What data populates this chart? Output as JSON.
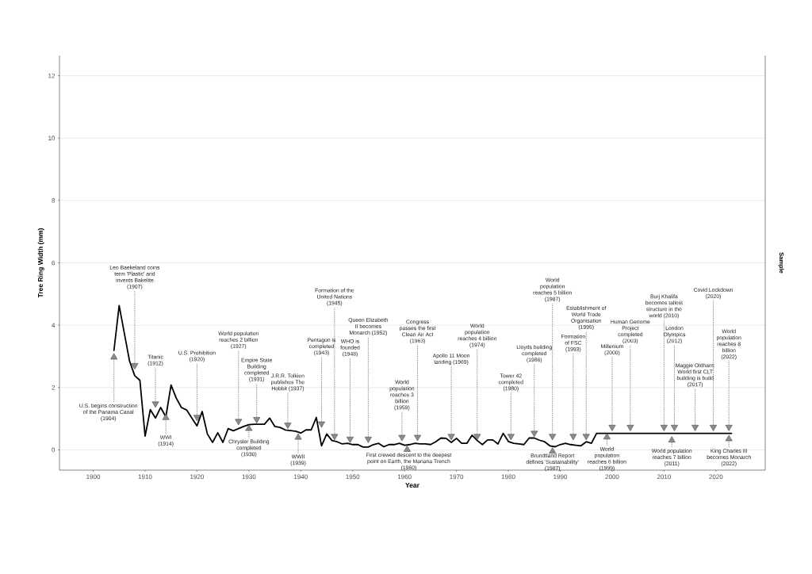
{
  "chart_data": {
    "type": "line",
    "xlabel": "Year",
    "ylabel": "Tree Ring Width (mm)",
    "x": [
      1904,
      1905,
      1906,
      1907,
      1908,
      1909,
      1910,
      1911,
      1912,
      1913,
      1914,
      1915,
      1916,
      1917,
      1918,
      1919,
      1920,
      1921,
      1922,
      1923,
      1924,
      1925,
      1926,
      1927,
      1928,
      1929,
      1930,
      1931,
      1932,
      1933,
      1934,
      1935,
      1936,
      1937,
      1938,
      1939,
      1940,
      1941,
      1942,
      1943,
      1944,
      1945,
      1946,
      1947,
      1948,
      1949,
      1950,
      1951,
      1952,
      1953,
      1954,
      1955,
      1956,
      1957,
      1958,
      1959,
      1960,
      1961,
      1962,
      1963,
      1964,
      1965,
      1966,
      1967,
      1968,
      1969,
      1970,
      1971,
      1972,
      1973,
      1974,
      1975,
      1976,
      1977,
      1978,
      1979,
      1980,
      1981,
      1982,
      1983,
      1984,
      1985,
      1986,
      1987,
      1988,
      1989,
      1990,
      1991,
      1992,
      1993,
      1994,
      1995,
      1996,
      1997,
      1998,
      1999,
      2000,
      2001,
      2002,
      2003,
      2004,
      2005,
      2006,
      2007,
      2008,
      2009,
      2010,
      2011,
      2012,
      2013,
      2014,
      2015,
      2016,
      2017,
      2018,
      2019,
      2020,
      2021,
      2022,
      2023
    ],
    "series": [
      {
        "color": "#000000",
        "values": [
          3.19,
          4.63,
          3.74,
          2.85,
          2.38,
          2.23,
          0.44,
          1.29,
          1.02,
          1.36,
          1.06,
          2.08,
          1.66,
          1.36,
          1.28,
          1.02,
          0.77,
          1.23,
          0.51,
          0.24,
          0.55,
          0.24,
          0.68,
          0.61,
          0.68,
          0.75,
          0.81,
          0.82,
          0.82,
          0.82,
          1.02,
          0.75,
          0.72,
          0.64,
          0.62,
          0.6,
          0.54,
          0.64,
          0.64,
          1.04,
          0.13,
          0.51,
          0.3,
          0.26,
          0.19,
          0.21,
          0.17,
          0.17,
          0.09,
          0.09,
          0.17,
          0.21,
          0.1,
          0.17,
          0.17,
          0.21,
          0.15,
          0.17,
          0.21,
          0.19,
          0.19,
          0.17,
          0.26,
          0.38,
          0.37,
          0.24,
          0.37,
          0.21,
          0.21,
          0.47,
          0.3,
          0.17,
          0.32,
          0.32,
          0.19,
          0.53,
          0.27,
          0.21,
          0.19,
          0.17,
          0.38,
          0.38,
          0.31,
          0.26,
          0.13,
          0.1,
          0.17,
          0.21,
          0.17,
          0.15,
          0.13,
          0.26,
          0.21,
          0.53,
          0.53,
          0.53,
          0.53,
          0.53,
          0.53,
          0.53,
          0.53,
          0.53,
          0.53,
          0.53,
          0.53,
          0.53,
          0.53,
          0.53,
          0.53,
          0.53,
          0.53,
          0.53,
          0.53,
          0.53,
          0.53,
          0.53,
          0.53,
          0.53,
          0.53,
          0.53
        ]
      }
    ],
    "xlim": [
      1893.5,
      2029.5
    ],
    "ylim": [
      -0.65,
      12.65
    ],
    "xticks": [
      1900,
      1910,
      1920,
      1930,
      1940,
      1950,
      1960,
      1970,
      1980,
      1990,
      2000,
      2010,
      2020
    ],
    "yticks": [
      0,
      2,
      4,
      6,
      8,
      10,
      12
    ],
    "grid": "y",
    "annotations": [
      {
        "text": "U.S. begins construction of the Panama Canal (1904)",
        "x": 1904,
        "y": 3.0
      },
      {
        "text": "Leo Baekeland coins term 'Plastic' and invents Bakelite (1907)",
        "x": 1908,
        "y": 2.68
      },
      {
        "text": "Titanic (1912)",
        "x": 1912,
        "y": 1.45
      },
      {
        "text": "WWI (1914)",
        "x": 1914,
        "y": 1.06
      },
      {
        "text": "U.S. Prohibition (1920)",
        "x": 1920,
        "y": 1.02
      },
      {
        "text": "World population reaches 2 billion (1927)",
        "x": 1928,
        "y": 0.89
      },
      {
        "text": "Chrysler Building completed (1930)",
        "x": 1930,
        "y": 0.71
      },
      {
        "text": "Empire State Building completed (1931)",
        "x": 1931.5,
        "y": 0.95
      },
      {
        "text": "J.R.R. Tolkien publishes The Hobbit (1937)",
        "x": 1937.5,
        "y": 0.77
      },
      {
        "text": "WWII (1939)",
        "x": 1939.5,
        "y": 0.43
      },
      {
        "text": "Pentagon is completed (1943)",
        "x": 1944,
        "y": 0.81
      },
      {
        "text": "Formation of the United Nations (1945)",
        "x": 1946.5,
        "y": 0.41
      },
      {
        "text": "WHO is founded (1948)",
        "x": 1949.5,
        "y": 0.32
      },
      {
        "text": "Queen Elizabeth II becomes Monarch (1952)",
        "x": 1953,
        "y": 0.32
      },
      {
        "text": "World population reaches 3 billion (1959)",
        "x": 1959.5,
        "y": 0.38
      },
      {
        "text": "First crewed descent to the deepest point on Earth, the Mariana Trench (1960)",
        "x": 1960.5,
        "y": 0.04
      },
      {
        "text": "Congress passes the first Clean Air Act (1963)",
        "x": 1962.5,
        "y": 0.38
      },
      {
        "text": "Apollo 11 Moon landing (1969)",
        "x": 1969,
        "y": 0.41
      },
      {
        "text": "World population reaches 4 billion (1974)",
        "x": 1974,
        "y": 0.41
      },
      {
        "text": "Tower 42 completed (1980)",
        "x": 1980.5,
        "y": 0.41
      },
      {
        "text": "Lloyds building completed (1986)",
        "x": 1985,
        "y": 0.51
      },
      {
        "text": "Brundtland Report defines 'Sustainability' (1987)",
        "x": 1988.5,
        "y": -0.02
      },
      {
        "text": "World population reaches 5 billion (1987)",
        "x": 1988.5,
        "y": 0.41
      },
      {
        "text": "Formation of FSC (1993)",
        "x": 1992.5,
        "y": 0.41
      },
      {
        "text": "Establishment of World Trade Organisation (1995)",
        "x": 1995,
        "y": 0.41
      },
      {
        "text": "World population reaches 6 billion (1999)",
        "x": 1999,
        "y": 0.44
      },
      {
        "text": "Millenium (2000)",
        "x": 2000,
        "y": 0.7
      },
      {
        "text": "Human Genome Project completed (2003)",
        "x": 2003.5,
        "y": 0.7
      },
      {
        "text": "Burj Khalifa becomes tallest structure in the world (2010)",
        "x": 2010,
        "y": 0.7
      },
      {
        "text": "World population reaches 7 billion (2011)",
        "x": 2011.5,
        "y": 0.34
      },
      {
        "text": "London Olympics (2012)",
        "x": 2012,
        "y": 0.7
      },
      {
        "text": "Maggie Oldham: World first CLT building is build (2017)",
        "x": 2016,
        "y": 0.7
      },
      {
        "text": "Covid Lockdown (2020)",
        "x": 2019.5,
        "y": 0.7
      },
      {
        "text": "World population reaches 8 billion (2022)",
        "x": 2022.5,
        "y": 0.7
      },
      {
        "text": "King Charles III becomes Monarch (2022)",
        "x": 2022.5,
        "y": 0.38
      },
      "Sample"
    ]
  }
}
